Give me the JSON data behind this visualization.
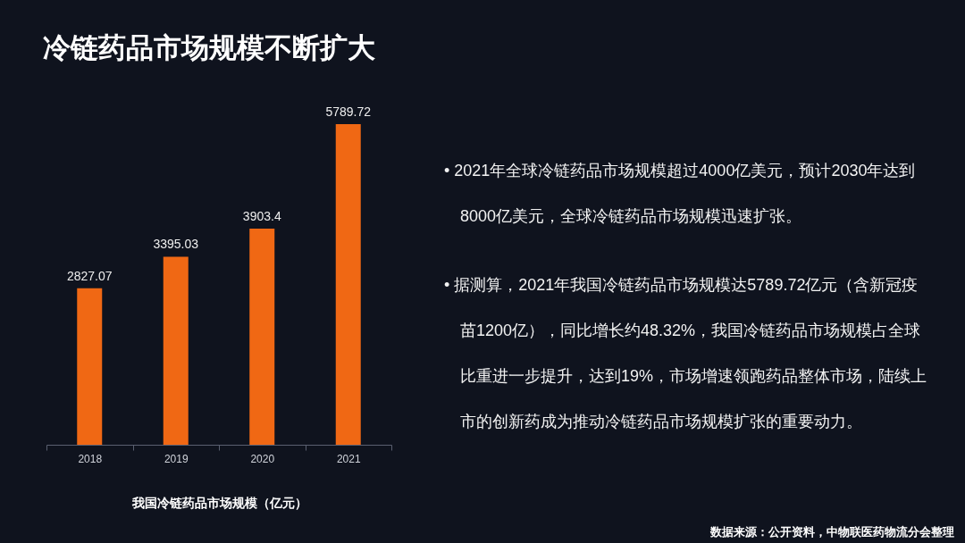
{
  "chart_data": {
    "type": "bar",
    "title": "冷链药品市场规模不断扩大",
    "xlabel": "我国冷链药品市场规模（亿元）",
    "categories": [
      "2018",
      "2019",
      "2020",
      "2021"
    ],
    "values": [
      2827.07,
      3395.03,
      3903.4,
      5789.72
    ],
    "color": "#f06814",
    "data_labels": true,
    "annotations": [
      "• 2021年全球冷链药品市场规模超过4000亿美元，预计2030年达到8000亿美元，全球冷链药品市场规模迅速扩张。",
      "• 据测算，2021年我国冷链药品市场规模达5789.72亿元（含新冠疫苗1200亿），同比增长约48.32%，我国冷链药品市场规模占全球比重进一步提升，达到19%，市场增速领跑药品整体市场，陆续上市的创新药成为推动冷链药品市场规模扩张的重要动力。",
      "数据来源：公开资料，中物联医药物流分会整理"
    ]
  }
}
